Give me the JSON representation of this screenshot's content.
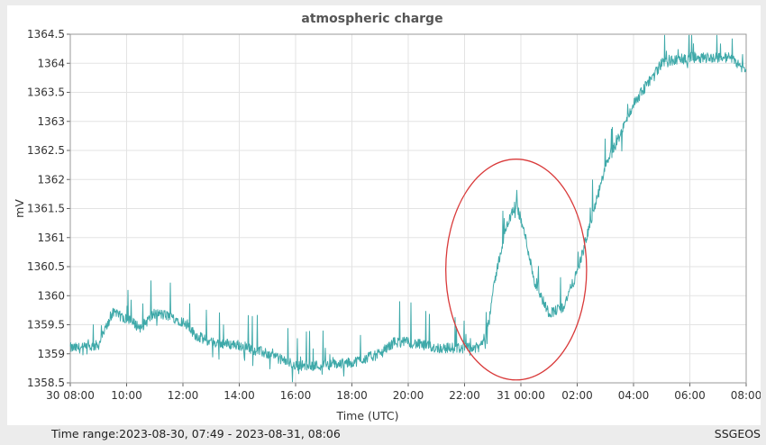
{
  "footer": {
    "time_range_label": "Time range:",
    "time_range_value": "2023-08-30, 07:49 - 2023-08-31, 08:06",
    "source": "SSGEOS"
  },
  "colors": {
    "series": "#3fa9a9",
    "grid": "#e3e3e3",
    "annotation": "#d93a3a",
    "axis_text": "#333333"
  },
  "chart_data": {
    "type": "line",
    "title": "atmospheric charge",
    "xlabel": "Time (UTC)",
    "ylabel": "mV",
    "xlim": [
      "2023-08-30 08:00",
      "2023-08-31 08:00"
    ],
    "ylim": [
      1358.5,
      1364.5
    ],
    "x_tick_labels": [
      "30 08:00",
      "10:00",
      "12:00",
      "14:00",
      "16:00",
      "18:00",
      "20:00",
      "22:00",
      "31 00:00",
      "02:00",
      "04:00",
      "06:00",
      "08:00"
    ],
    "y_ticks": [
      1358.5,
      1359,
      1359.5,
      1360,
      1360.5,
      1361,
      1361.5,
      1362,
      1362.5,
      1363,
      1363.5,
      1364,
      1364.5
    ],
    "grid": true,
    "legend": "none",
    "series": [
      {
        "x": [
          "2023-08-30 08:00",
          "2023-08-30 08:30",
          "2023-08-30 09:00",
          "2023-08-30 09:30",
          "2023-08-30 10:00",
          "2023-08-30 10:30",
          "2023-08-30 11:00",
          "2023-08-30 11:30",
          "2023-08-30 12:00",
          "2023-08-30 12:30",
          "2023-08-30 13:00",
          "2023-08-30 14:00",
          "2023-08-30 15:00",
          "2023-08-30 16:00",
          "2023-08-30 17:00",
          "2023-08-30 18:00",
          "2023-08-30 19:00",
          "2023-08-30 19:30",
          "2023-08-30 20:00",
          "2023-08-30 21:00",
          "2023-08-30 22:00",
          "2023-08-30 22:30",
          "2023-08-30 22:45",
          "2023-08-30 23:10",
          "2023-08-30 23:30",
          "2023-08-30 23:50",
          "2023-08-31 00:10",
          "2023-08-31 00:30",
          "2023-08-31 01:00",
          "2023-08-31 01:30",
          "2023-08-31 02:00",
          "2023-08-31 02:30",
          "2023-08-31 03:00",
          "2023-08-31 04:00",
          "2023-08-31 05:00",
          "2023-08-31 06:00",
          "2023-08-31 07:00",
          "2023-08-31 07:30",
          "2023-08-31 08:00"
        ],
        "y": [
          1359.1,
          1359.1,
          1359.15,
          1359.7,
          1359.6,
          1359.45,
          1359.7,
          1359.65,
          1359.55,
          1359.3,
          1359.2,
          1359.15,
          1359.0,
          1358.8,
          1358.8,
          1358.85,
          1359.0,
          1359.2,
          1359.2,
          1359.1,
          1359.1,
          1359.1,
          1359.3,
          1360.5,
          1361.2,
          1361.6,
          1361.0,
          1360.2,
          1359.7,
          1359.8,
          1360.4,
          1361.3,
          1362.2,
          1363.3,
          1364.0,
          1364.1,
          1364.1,
          1364.1,
          1363.85
        ]
      }
    ],
    "annotations": [
      {
        "type": "ellipse",
        "label": "",
        "center_x": "2023-08-30 23:50",
        "center_y": 1360.45,
        "x_halfwidth_hours": 2.5,
        "y_halfheight": 1.9
      }
    ]
  }
}
